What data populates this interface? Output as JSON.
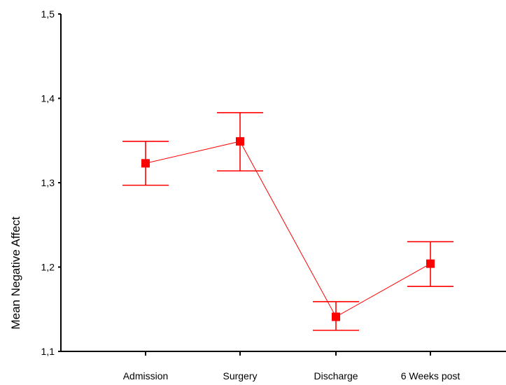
{
  "chart_data": {
    "type": "line",
    "title": "",
    "xlabel": "",
    "ylabel": "Mean Negative Affect",
    "categories": [
      "Admission",
      "Surgery",
      "Discharge",
      "6 Weeks post"
    ],
    "ylim": [
      1.1,
      1.5
    ],
    "y_ticks": [
      "1,1",
      "1,2",
      "1,3",
      "1,4",
      "1,5"
    ],
    "y_tick_values": [
      1.1,
      1.2,
      1.3,
      1.4,
      1.5
    ],
    "series": [
      {
        "values": [
          1.323,
          1.349,
          1.141,
          1.204
        ],
        "error_low": [
          1.297,
          1.314,
          1.125,
          1.177
        ],
        "error_high": [
          1.349,
          1.383,
          1.159,
          1.23
        ],
        "color": "#ff0000",
        "marker": "square"
      }
    ],
    "grid": false,
    "legend": "none"
  }
}
